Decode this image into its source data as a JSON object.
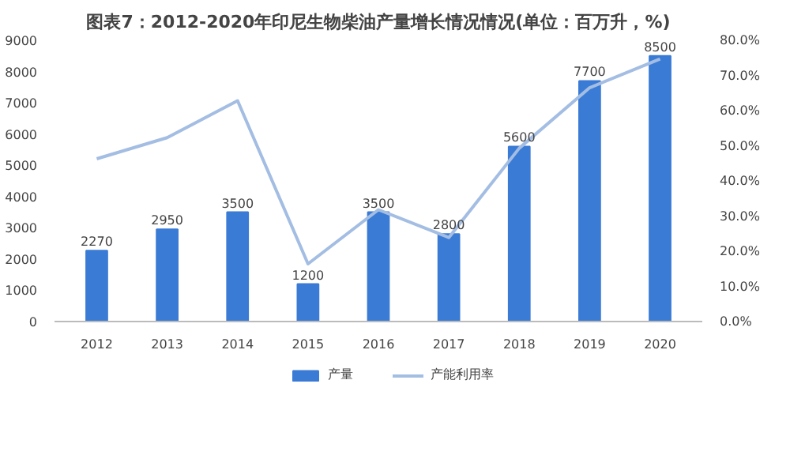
{
  "chart_data": {
    "type": "bar",
    "title": "图表7：2012-2020年印尼生物柴油产量增长情况情况(单位：百万升，%)",
    "categories": [
      "2012",
      "2013",
      "2014",
      "2015",
      "2016",
      "2017",
      "2018",
      "2019",
      "2020"
    ],
    "series": [
      {
        "name": "产量",
        "color": "#3a7bd5",
        "values": [
          2270,
          2950,
          3500,
          1200,
          3500,
          2800,
          5600,
          7700,
          8500
        ],
        "value_labels": [
          "2270",
          "2950",
          "3500",
          "1200",
          "3500",
          "2800",
          "5600",
          "7700",
          "8500"
        ]
      },
      {
        "name": "产能利用率",
        "type": "line",
        "axis": "y2",
        "color": "#a3bde3",
        "values": [
          46.3,
          52.3,
          62.8,
          16.4,
          31.8,
          23.9,
          49.3,
          66.5,
          74.7
        ]
      }
    ],
    "ylim": [
      0,
      9000
    ],
    "yticks": [
      0,
      1000,
      2000,
      3000,
      4000,
      5000,
      6000,
      7000,
      8000,
      9000
    ],
    "y2lim": [
      0,
      80
    ],
    "y2ticks": [
      {
        "value": 0,
        "label": "0.0%"
      },
      {
        "value": 10,
        "label": "10.0%"
      },
      {
        "value": 20,
        "label": "20.0%"
      },
      {
        "value": 30,
        "label": "30.0%"
      },
      {
        "value": 40,
        "label": "40.0%"
      },
      {
        "value": 50,
        "label": "50.0%"
      },
      {
        "value": 60,
        "label": "60.0%"
      },
      {
        "value": 70,
        "label": "70.0%"
      },
      {
        "value": 80,
        "label": "80.0%"
      }
    ],
    "legend": "bottom",
    "grid": false
  }
}
